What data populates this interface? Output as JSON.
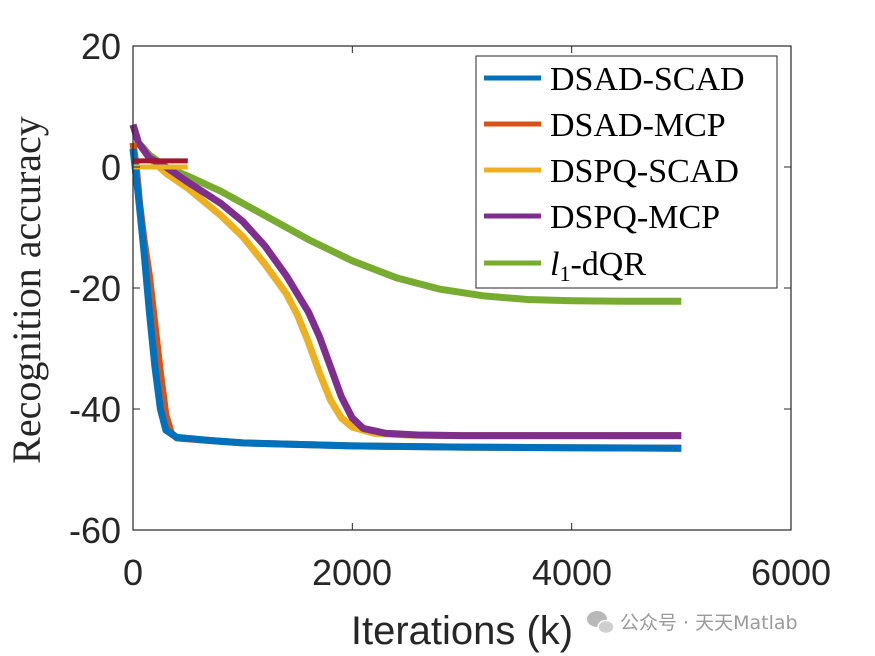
{
  "chart_data": {
    "type": "line",
    "xlabel": "Iterations (k)",
    "ylabel": "Recognition accuracy",
    "xlim": [
      0,
      6000
    ],
    "ylim": [
      -60,
      20
    ],
    "xticks": [
      "0",
      "2000",
      "4000",
      "6000"
    ],
    "yticks": [
      "20",
      "0",
      "-20",
      "-40",
      "-60"
    ],
    "grid": false,
    "legend_position": "top-right",
    "series": [
      {
        "name": "DSAD-SCAD",
        "color": "#0072BD",
        "points": [
          [
            0,
            3
          ],
          [
            50,
            -5
          ],
          [
            100,
            -14
          ],
          [
            150,
            -24
          ],
          [
            200,
            -33
          ],
          [
            250,
            -40
          ],
          [
            300,
            -43.5
          ],
          [
            400,
            -44.7
          ],
          [
            700,
            -45.2
          ],
          [
            1000,
            -45.6
          ],
          [
            2000,
            -46.1
          ],
          [
            3000,
            -46.3
          ],
          [
            4000,
            -46.4
          ],
          [
            5000,
            -46.5
          ]
        ]
      },
      {
        "name": "DSAD-MCP",
        "color": "#D95319",
        "points": [
          [
            0,
            4
          ],
          [
            30,
            0
          ],
          [
            60,
            -6
          ],
          [
            100,
            -12
          ],
          [
            150,
            -18
          ],
          [
            200,
            -26
          ],
          [
            250,
            -34
          ],
          [
            300,
            -41
          ],
          [
            350,
            -44
          ],
          [
            400,
            -44.8
          ],
          [
            700,
            -45.2
          ],
          [
            1000,
            -45.6
          ],
          [
            2000,
            -46.1
          ],
          [
            3000,
            -46.3
          ],
          [
            4000,
            -46.4
          ],
          [
            5000,
            -46.5
          ]
        ]
      },
      {
        "name": "DSPQ-SCAD",
        "color": "#EDB120",
        "points": [
          [
            0,
            7
          ],
          [
            50,
            4
          ],
          [
            150,
            1.5
          ],
          [
            300,
            -1
          ],
          [
            500,
            -3.5
          ],
          [
            800,
            -8
          ],
          [
            1000,
            -11.5
          ],
          [
            1200,
            -16
          ],
          [
            1400,
            -21
          ],
          [
            1500,
            -24.5
          ],
          [
            1600,
            -29
          ],
          [
            1700,
            -34
          ],
          [
            1800,
            -38.5
          ],
          [
            1900,
            -41.5
          ],
          [
            2000,
            -43
          ],
          [
            2200,
            -44
          ],
          [
            2500,
            -44.3
          ],
          [
            3000,
            -44.4
          ],
          [
            4000,
            -44.4
          ],
          [
            5000,
            -44.4
          ]
        ]
      },
      {
        "name": "DSPQ-MCP",
        "color": "#7E2F8E",
        "points": [
          [
            0,
            7
          ],
          [
            50,
            4
          ],
          [
            150,
            1.5
          ],
          [
            300,
            0
          ],
          [
            500,
            -2.5
          ],
          [
            800,
            -6
          ],
          [
            1000,
            -9
          ],
          [
            1200,
            -13
          ],
          [
            1400,
            -18
          ],
          [
            1600,
            -24
          ],
          [
            1700,
            -28
          ],
          [
            1800,
            -33
          ],
          [
            1900,
            -38
          ],
          [
            2000,
            -41.5
          ],
          [
            2100,
            -43.2
          ],
          [
            2300,
            -44
          ],
          [
            2600,
            -44.3
          ],
          [
            3000,
            -44.4
          ],
          [
            4000,
            -44.4
          ],
          [
            5000,
            -44.4
          ]
        ]
      },
      {
        "name": "l1-dQR",
        "color": "#77AC30",
        "points": [
          [
            0,
            7
          ],
          [
            50,
            4
          ],
          [
            150,
            2
          ],
          [
            300,
            0
          ],
          [
            500,
            -1.5
          ],
          [
            800,
            -4
          ],
          [
            1000,
            -6
          ],
          [
            1300,
            -9
          ],
          [
            1600,
            -12
          ],
          [
            2000,
            -15.5
          ],
          [
            2400,
            -18.3
          ],
          [
            2800,
            -20.2
          ],
          [
            3200,
            -21.3
          ],
          [
            3600,
            -21.9
          ],
          [
            4000,
            -22.1
          ],
          [
            4500,
            -22.2
          ],
          [
            5000,
            -22.2
          ]
        ]
      }
    ],
    "extra_marks": [
      {
        "color": "#EDB120",
        "points": [
          [
            0,
            0
          ],
          [
            500,
            0
          ]
        ]
      },
      {
        "color": "#A2142F",
        "points": [
          [
            0,
            1
          ],
          [
            500,
            1
          ]
        ]
      }
    ]
  },
  "legend": {
    "items": [
      {
        "label": "DSAD-SCAD",
        "color": "#0072BD"
      },
      {
        "label": "DSAD-MCP",
        "color": "#D95319"
      },
      {
        "label": "DSPQ-SCAD",
        "color": "#EDB120"
      },
      {
        "label": "DSPQ-MCP",
        "color": "#7E2F8E"
      },
      {
        "label": "-dQR",
        "color": "#77AC30"
      }
    ],
    "l1_main": "l",
    "l1_sub": "1"
  },
  "watermark": "公众号 · 天天Matlab"
}
